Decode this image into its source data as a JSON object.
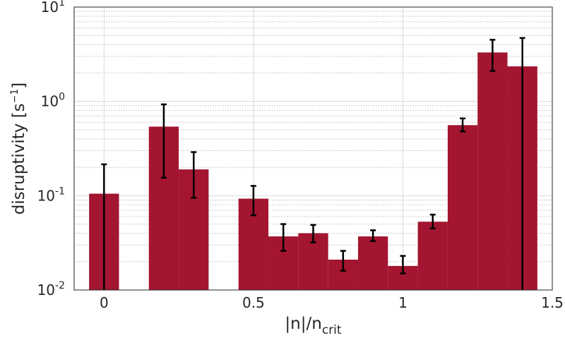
{
  "chart_data": {
    "type": "bar",
    "xlabel": "|n|/n",
    "xlabel_subscript": "crit",
    "ylabel": "disruptivity [s",
    "ylabel_superscript": "−1",
    "ylabel_suffix": "]",
    "yscale": "log",
    "xlim": [
      -0.1,
      1.5
    ],
    "ylim": [
      0.01,
      10
    ],
    "grid": true,
    "bar_color": "#a31530",
    "errorbar_color": "#000000",
    "xticks": [
      {
        "value": 0,
        "label": "0"
      },
      {
        "value": 0.5,
        "label": "0.5"
      },
      {
        "value": 1,
        "label": "1"
      },
      {
        "value": 1.5,
        "label": "1.5"
      }
    ],
    "yticks": [
      {
        "value": 0.01,
        "base": "10",
        "exp": "-2"
      },
      {
        "value": 0.1,
        "base": "10",
        "exp": "-1"
      },
      {
        "value": 1,
        "base": "10",
        "exp": "0"
      },
      {
        "value": 10,
        "base": "10",
        "exp": "1"
      }
    ],
    "bars": [
      {
        "x": 0.0,
        "value": 0.105,
        "err_low": 0.01,
        "err_high": 0.215
      },
      {
        "x": 0.2,
        "value": 0.54,
        "err_low": 0.155,
        "err_high": 0.93
      },
      {
        "x": 0.3,
        "value": 0.19,
        "err_low": 0.095,
        "err_high": 0.29
      },
      {
        "x": 0.5,
        "value": 0.093,
        "err_low": 0.062,
        "err_high": 0.127
      },
      {
        "x": 0.6,
        "value": 0.037,
        "err_low": 0.026,
        "err_high": 0.05
      },
      {
        "x": 0.7,
        "value": 0.04,
        "err_low": 0.032,
        "err_high": 0.049
      },
      {
        "x": 0.8,
        "value": 0.021,
        "err_low": 0.016,
        "err_high": 0.026
      },
      {
        "x": 0.9,
        "value": 0.037,
        "err_low": 0.033,
        "err_high": 0.043
      },
      {
        "x": 1.0,
        "value": 0.018,
        "err_low": 0.015,
        "err_high": 0.023
      },
      {
        "x": 1.1,
        "value": 0.053,
        "err_low": 0.045,
        "err_high": 0.063
      },
      {
        "x": 1.2,
        "value": 0.56,
        "err_low": 0.48,
        "err_high": 0.66
      },
      {
        "x": 1.3,
        "value": 3.3,
        "err_low": 2.1,
        "err_high": 4.5
      },
      {
        "x": 1.4,
        "value": 2.35,
        "err_low": 0.01,
        "err_high": 4.7
      }
    ],
    "bar_width": 0.1
  }
}
